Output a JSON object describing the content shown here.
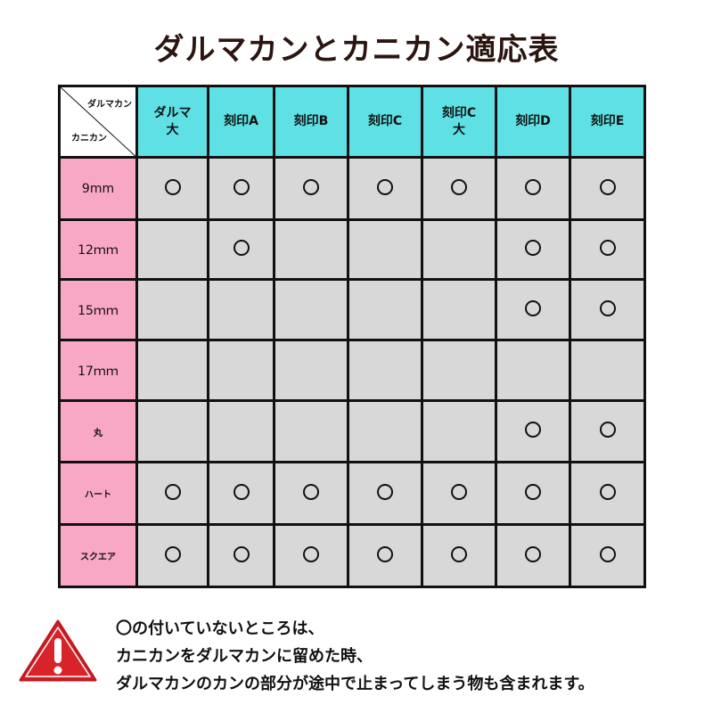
{
  "title": "ダルマカンとカニカン適応表",
  "table": {
    "corner_top": "ダルマカン",
    "corner_bottom": "カニカン",
    "columns": [
      "ダルマ\n大",
      "刻印A",
      "刻印B",
      "刻印C",
      "刻印C\n大",
      "刻印D",
      "刻印E"
    ],
    "rows": [
      {
        "label": "9mm",
        "marks": [
          true,
          true,
          true,
          true,
          true,
          true,
          true
        ]
      },
      {
        "label": "12ｍｍ",
        "marks": [
          false,
          true,
          false,
          false,
          false,
          true,
          true
        ]
      },
      {
        "label": "15ｍｍ",
        "marks": [
          false,
          false,
          false,
          false,
          false,
          true,
          true
        ]
      },
      {
        "label": "17ｍｍ",
        "marks": [
          false,
          false,
          false,
          false,
          false,
          false,
          false
        ]
      },
      {
        "label": "丸",
        "marks": [
          false,
          false,
          false,
          false,
          false,
          true,
          true
        ]
      },
      {
        "label": "ハート",
        "marks": [
          true,
          true,
          true,
          true,
          true,
          true,
          true
        ]
      },
      {
        "label": "スクエア",
        "marks": [
          true,
          true,
          true,
          true,
          true,
          true,
          true
        ]
      }
    ],
    "mark_symbol": "circle",
    "colors": {
      "header": "#5ee0e4",
      "row_header": "#f8a8c4",
      "cell": "#d8d8d8"
    }
  },
  "note": {
    "icon": "warning-triangle-icon",
    "lines": [
      "〇の付いていないところは、",
      "カニカンをダルマカンに留めた時、",
      "ダルマカンのカンの部分が途中で止まってしまう物も含まれます。"
    ]
  }
}
